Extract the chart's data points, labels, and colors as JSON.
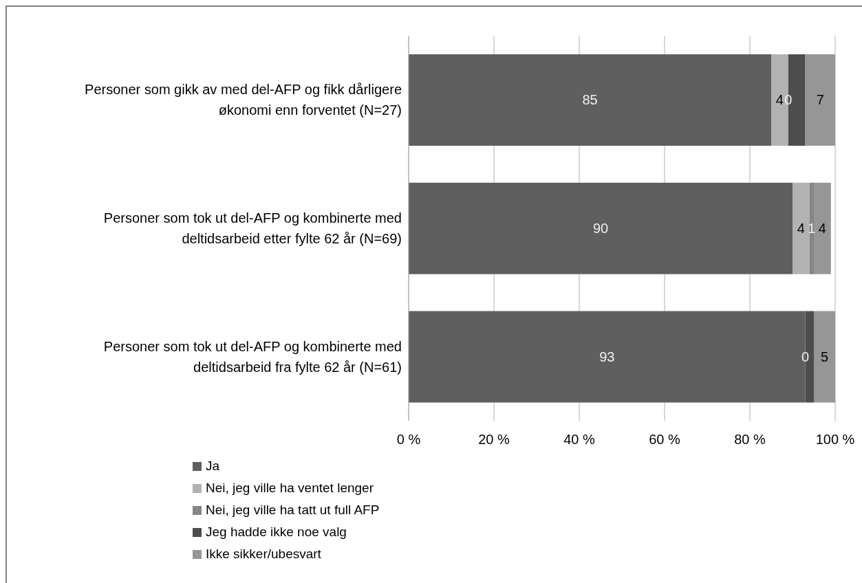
{
  "chart_data": {
    "type": "bar",
    "orientation": "horizontal",
    "stacked": true,
    "categories": [
      "Personer som gikk av med del-AFP og fikk dårligere økonomi enn forventet (N=27)",
      "Personer som tok ut del-AFP og kombinerte med deltidsarbeid etter fylte 62 år (N=69)",
      "Personer som tok ut del-AFP og kombinerte med deltidsarbeid fra fylte 62 år (N=61)"
    ],
    "series": [
      {
        "name": "Ja",
        "color": "#5f5f5f",
        "values": [
          85,
          90,
          93
        ],
        "value_labels": [
          "85",
          "90",
          "93"
        ]
      },
      {
        "name": "Nei, jeg ville ha ventet lenger",
        "color": "#b2b2b2",
        "values": [
          4,
          4,
          0
        ],
        "value_labels": [
          "4",
          "4",
          null
        ]
      },
      {
        "name": "Nei, jeg ville ha tatt ut full AFP",
        "color": "#868686",
        "values": [
          0,
          1,
          0
        ],
        "value_labels": [
          "0",
          "1",
          "0"
        ]
      },
      {
        "name": "Jeg hadde ikke noe valg",
        "color": "#4d4d4d",
        "values": [
          4,
          0,
          2
        ],
        "value_labels": [
          null,
          null,
          null
        ]
      },
      {
        "name": "Ikke sikker/ubesvart",
        "color": "#969696",
        "values": [
          7,
          4,
          5
        ],
        "value_labels": [
          "7",
          "4",
          "5"
        ]
      }
    ],
    "xlim": [
      0,
      100
    ],
    "xticks": [
      {
        "value": 0,
        "label": "0 %"
      },
      {
        "value": 20,
        "label": "20 %"
      },
      {
        "value": 40,
        "label": "40 %"
      },
      {
        "value": 60,
        "label": "60 %"
      },
      {
        "value": 80,
        "label": "80 %"
      },
      {
        "value": 100,
        "label": "100 %"
      }
    ],
    "grid": "x",
    "legend": "bottom"
  }
}
